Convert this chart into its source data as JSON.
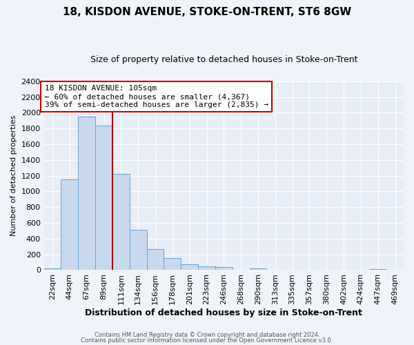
{
  "title": "18, KISDON AVENUE, STOKE-ON-TRENT, ST6 8GW",
  "subtitle": "Size of property relative to detached houses in Stoke-on-Trent",
  "xlabel": "Distribution of detached houses by size in Stoke-on-Trent",
  "ylabel": "Number of detached properties",
  "bin_labels": [
    "22sqm",
    "44sqm",
    "67sqm",
    "89sqm",
    "111sqm",
    "134sqm",
    "156sqm",
    "178sqm",
    "201sqm",
    "223sqm",
    "246sqm",
    "268sqm",
    "290sqm",
    "313sqm",
    "335sqm",
    "357sqm",
    "380sqm",
    "402sqm",
    "424sqm",
    "447sqm",
    "469sqm"
  ],
  "bin_values": [
    25,
    1150,
    1950,
    1840,
    1220,
    515,
    265,
    150,
    75,
    45,
    35,
    0,
    18,
    0,
    0,
    0,
    5,
    0,
    0,
    10,
    0
  ],
  "bar_color": "#c8d9ee",
  "bar_edge_color": "#6b9fcc",
  "vline_color": "#aa0000",
  "annotation_title": "18 KISDON AVENUE: 105sqm",
  "annotation_line1": "← 60% of detached houses are smaller (4,367)",
  "annotation_line2": "39% of semi-detached houses are larger (2,835) →",
  "annotation_box_color": "#cc0000",
  "ylim": [
    0,
    2400
  ],
  "yticks": [
    0,
    200,
    400,
    600,
    800,
    1000,
    1200,
    1400,
    1600,
    1800,
    2000,
    2200,
    2400
  ],
  "footer1": "Contains HM Land Registry data © Crown copyright and database right 2024.",
  "footer2": "Contains public sector information licensed under the Open Government Licence v3.0.",
  "bg_color": "#f0f4fa",
  "plot_bg_color": "#e8eef8",
  "grid_color": "#ffffff",
  "title_fontsize": 11,
  "subtitle_fontsize": 9,
  "xlabel_fontsize": 9,
  "ylabel_fontsize": 8,
  "tick_fontsize": 8,
  "annot_fontsize": 8,
  "footer_fontsize": 6
}
